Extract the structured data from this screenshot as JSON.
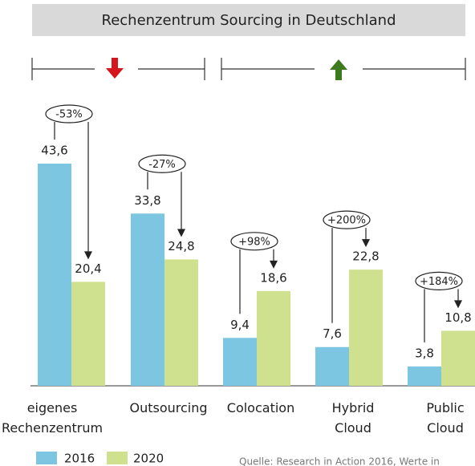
{
  "chart_data": {
    "type": "bar",
    "title": "Rechenzentrum Sourcing in Deutschland",
    "categories": [
      "eigenes Rechenzentrum",
      "Outsourcing",
      "Colocation",
      "Hybrid Cloud",
      "Public Cloud"
    ],
    "series": [
      {
        "name": "2016",
        "color": "#7cc6e1",
        "values": [
          43.6,
          33.8,
          9.4,
          7.6,
          3.8
        ],
        "value_labels": [
          "43,6",
          "33,8",
          "9,4",
          "7,6",
          "3,8"
        ]
      },
      {
        "name": "2020",
        "color": "#cfe08f",
        "values": [
          20.4,
          24.8,
          18.6,
          22.8,
          10.8
        ],
        "value_labels": [
          "20,4",
          "24,8",
          "18,6",
          "22,8",
          "10,8"
        ]
      }
    ],
    "annotations": [
      "-53%",
      "-27%",
      "+98%",
      "+200%",
      "+184%"
    ],
    "source": "Quelle: Research in Action 2016, Werte in"
  }
}
